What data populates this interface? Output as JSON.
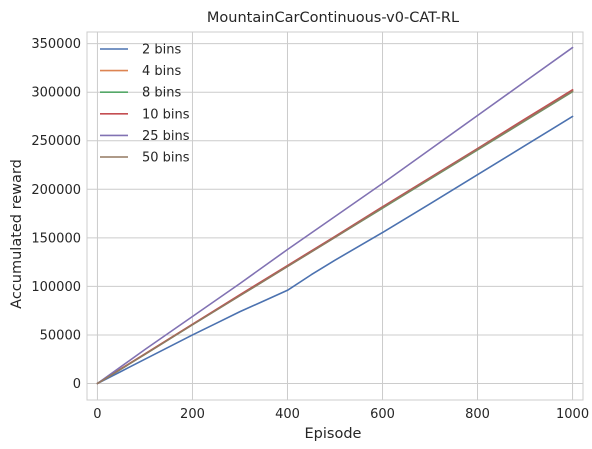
{
  "chart_data": {
    "type": "line",
    "title": "MountainCarContinuous-v0-CAT-RL",
    "xlabel": "Episode",
    "ylabel": "Accumulated reward",
    "xlim": [
      -22,
      1022
    ],
    "ylim": [
      -17000,
      362000
    ],
    "xticks": [
      0,
      200,
      400,
      600,
      800,
      1000
    ],
    "yticks": [
      0,
      50000,
      100000,
      150000,
      200000,
      250000,
      300000,
      350000
    ],
    "grid": true,
    "legend_position": "top-left",
    "series": [
      {
        "name": "2 bins",
        "color": "#4c72b0",
        "x": [
          0,
          50,
          100,
          150,
          200,
          250,
          300,
          350,
          400,
          450,
          500,
          600,
          700,
          800,
          900,
          1000
        ],
        "y": [
          0,
          12500,
          25000,
          37500,
          50000,
          62000,
          74000,
          85000,
          96000,
          112000,
          127000,
          155500,
          185000,
          215000,
          245000,
          275000
        ]
      },
      {
        "name": "4 bins",
        "color": "#dd8452",
        "x": [
          0,
          100,
          200,
          300,
          400,
          500,
          600,
          700,
          800,
          900,
          1000
        ],
        "y": [
          0,
          30500,
          61000,
          91000,
          121000,
          151000,
          181500,
          211500,
          241500,
          272000,
          302000
        ]
      },
      {
        "name": "8 bins",
        "color": "#55a868",
        "x": [
          0,
          100,
          200,
          300,
          400,
          500,
          600,
          700,
          800,
          900,
          1000
        ],
        "y": [
          0,
          30000,
          60500,
          90500,
          120500,
          150500,
          180500,
          210500,
          240500,
          270500,
          300500
        ]
      },
      {
        "name": "10 bins",
        "color": "#c44e52",
        "x": [
          0,
          100,
          200,
          300,
          400,
          500,
          600,
          700,
          800,
          900,
          1000
        ],
        "y": [
          0,
          30500,
          61000,
          91500,
          121500,
          151500,
          182000,
          212000,
          242000,
          272500,
          302500
        ]
      },
      {
        "name": "25 bins",
        "color": "#8172b3",
        "x": [
          0,
          100,
          200,
          300,
          400,
          500,
          600,
          700,
          800,
          900,
          1000
        ],
        "y": [
          0,
          35000,
          69000,
          103000,
          138000,
          172000,
          206000,
          241000,
          276000,
          311000,
          346000
        ]
      },
      {
        "name": "50 bins",
        "color": "#937860",
        "x": [
          0,
          100,
          200,
          300,
          400,
          500,
          600,
          700,
          800,
          900,
          1000
        ],
        "y": [
          0,
          30000,
          60500,
          90500,
          120500,
          150500,
          181000,
          211000,
          241000,
          271000,
          301000
        ]
      }
    ]
  }
}
